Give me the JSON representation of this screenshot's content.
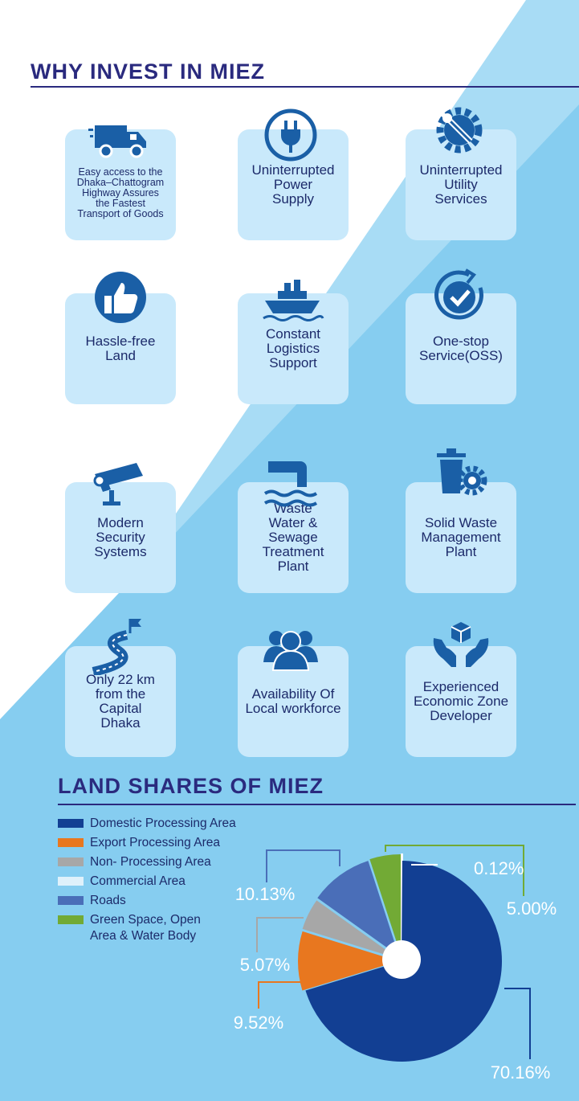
{
  "header": {
    "title": "WHY INVEST IN MIEZ"
  },
  "features": [
    {
      "icon": "delivery-truck-icon",
      "label": "Easy access to the\nDhaka–Chattogram\nHighway Assures\nthe Fastest\nTransport of Goods"
    },
    {
      "icon": "power-plug-icon",
      "label": "Uninterrupted\nPower\nSupply"
    },
    {
      "icon": "wrench-gear-icon",
      "label": "Uninterrupted\nUtility\nServices"
    },
    {
      "icon": "thumbs-up-icon",
      "label": "Hassle-free\nLand"
    },
    {
      "icon": "cargo-ship-icon",
      "label": "Constant\nLogistics\nSupport"
    },
    {
      "icon": "check-circle-icon",
      "label": "One-stop\nService(OSS)"
    },
    {
      "icon": "security-camera-icon",
      "label": "Modern\nSecurity\nSystems"
    },
    {
      "icon": "sewage-pipe-icon",
      "label": "Waste\nWater & Sewage\nTreatment\nPlant"
    },
    {
      "icon": "waste-bin-gear-icon",
      "label": "Solid Waste\nManagement\nPlant"
    },
    {
      "icon": "winding-road-flag-icon",
      "label": "Only 22 km\nfrom the\nCapital\nDhaka"
    },
    {
      "icon": "people-group-icon",
      "label": "Availability Of\nLocal workforce"
    },
    {
      "icon": "hands-box-icon",
      "label": "Experienced\nEconomic Zone\nDeveloper"
    }
  ],
  "land_section": {
    "title": "LAND SHARES OF MIEZ"
  },
  "colors": {
    "heading": "#2a2a7e",
    "card": "#c9e9fb",
    "icon": "#1a5fa6",
    "bg_light": "#a8dcf5",
    "bg_mid": "#86cdf0"
  },
  "chart_data": {
    "type": "pie",
    "title": "LAND SHARES OF MIEZ",
    "legend_placement": "left",
    "slices": [
      {
        "name": "Domestic Processing Area",
        "value": 70.16,
        "label": "70.16%",
        "color": "#123f93"
      },
      {
        "name": "Export Processing Area",
        "value": 9.52,
        "label": "9.52%",
        "color": "#e8771f"
      },
      {
        "name": "Non- Processing Area",
        "value": 5.07,
        "label": "5.07%",
        "color": "#a7a7a7"
      },
      {
        "name": "Roads",
        "value": 10.13,
        "label": "10.13%",
        "color": "#4a6eb8"
      },
      {
        "name": "Green Space, Open\nArea & Water Body",
        "value": 5.0,
        "label": "5.00%",
        "color": "#72aa35"
      },
      {
        "name": "Commercial Area",
        "value": 0.12,
        "label": "0.12%",
        "color": "#dff1fb"
      }
    ],
    "legend_order": [
      "Domestic Processing Area",
      "Export Processing Area",
      "Non- Processing Area",
      "Commercial Area",
      "Roads",
      "Green Space, Open\nArea & Water Body"
    ]
  }
}
